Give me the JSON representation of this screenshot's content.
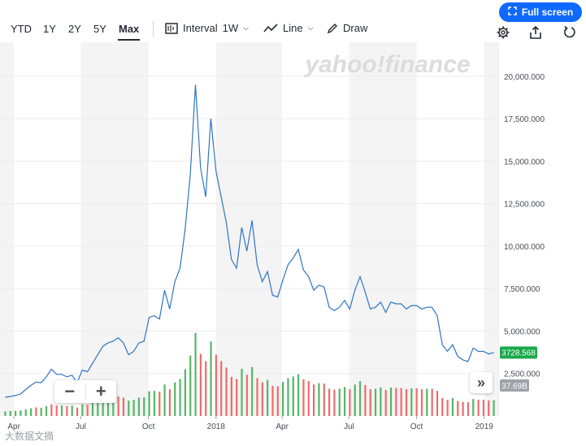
{
  "toolbar": {
    "ranges": [
      "YTD",
      "1Y",
      "2Y",
      "5Y",
      "Max"
    ],
    "active_range": "Max",
    "interval_label": "Interval",
    "interval_value": "1W",
    "line_label": "Line",
    "draw_label": "Draw",
    "fullscreen_label": "Full screen",
    "icons": [
      "candlestick-icon",
      "line-chart-icon",
      "pencil-icon",
      "fullscreen-icon",
      "settings-icon",
      "share-icon",
      "reset-icon"
    ]
  },
  "watermark": {
    "brand": "yahoo!finance",
    "bottom_text": "大数据文摘"
  },
  "colors": {
    "line": "#2e75c7",
    "volume_up": "#56b567",
    "volume_down": "#ee6b6b",
    "price_badge": "#1aa84b",
    "volume_badge": "#9da3a9",
    "accent": "#0f69ff"
  },
  "chart_data": {
    "type": "line",
    "x_ticks": [
      "Apr",
      "Jul",
      "Oct",
      "2018",
      "Apr",
      "Jul",
      "Oct",
      "2019"
    ],
    "x_tick_dates": [
      "2017-04-01",
      "2017-07-01",
      "2017-10-01",
      "2018-01-01",
      "2018-04-01",
      "2018-07-01",
      "2018-10-01",
      "2019-01-01"
    ],
    "y_ticks": [
      "2,500.000",
      "5,000.000",
      "7,500.000",
      "10,000.000",
      "12,500.000",
      "15,000.000",
      "17,500.000",
      "20,000.000"
    ],
    "y_tick_values": [
      2500,
      5000,
      7500,
      10000,
      12500,
      15000,
      17500,
      20000
    ],
    "ylim": [
      0,
      22000
    ],
    "last_price_label": "3728.568",
    "last_volume_label": "37.69B",
    "grid": true,
    "series": [
      {
        "x": [
          "2017-03-20",
          "2017-03-27",
          "2017-04-03",
          "2017-04-10",
          "2017-04-17",
          "2017-04-24",
          "2017-05-01",
          "2017-05-08",
          "2017-05-15",
          "2017-05-22",
          "2017-05-29",
          "2017-06-05",
          "2017-06-12",
          "2017-06-19",
          "2017-06-26",
          "2017-07-03",
          "2017-07-10",
          "2017-07-17",
          "2017-07-24",
          "2017-07-31",
          "2017-08-07",
          "2017-08-14",
          "2017-08-21",
          "2017-08-28",
          "2017-09-04",
          "2017-09-11",
          "2017-09-18",
          "2017-09-25",
          "2017-10-02",
          "2017-10-09",
          "2017-10-16",
          "2017-10-23",
          "2017-10-30",
          "2017-11-06",
          "2017-11-13",
          "2017-11-20",
          "2017-11-27",
          "2017-12-04",
          "2017-12-11",
          "2017-12-18",
          "2017-12-25",
          "2018-01-01",
          "2018-01-08",
          "2018-01-15",
          "2018-01-22",
          "2018-01-29",
          "2018-02-05",
          "2018-02-12",
          "2018-02-19",
          "2018-02-26",
          "2018-03-05",
          "2018-03-12",
          "2018-03-19",
          "2018-03-26",
          "2018-04-02",
          "2018-04-09",
          "2018-04-16",
          "2018-04-23",
          "2018-04-30",
          "2018-05-07",
          "2018-05-14",
          "2018-05-21",
          "2018-05-28",
          "2018-06-04",
          "2018-06-11",
          "2018-06-18",
          "2018-06-25",
          "2018-07-02",
          "2018-07-09",
          "2018-07-16",
          "2018-07-23",
          "2018-07-30",
          "2018-08-06",
          "2018-08-13",
          "2018-08-20",
          "2018-08-27",
          "2018-09-03",
          "2018-09-10",
          "2018-09-17",
          "2018-09-24",
          "2018-10-01",
          "2018-10-08",
          "2018-10-15",
          "2018-10-22",
          "2018-10-29",
          "2018-11-05",
          "2018-11-12",
          "2018-11-19",
          "2018-11-26",
          "2018-12-03",
          "2018-12-10",
          "2018-12-17",
          "2018-12-24",
          "2018-12-31",
          "2019-01-07",
          "2019-01-14"
        ],
        "y": [
          1100,
          1150,
          1200,
          1300,
          1550,
          1800,
          2000,
          1950,
          2300,
          2750,
          2450,
          2450,
          2300,
          2400,
          1950,
          2700,
          2600,
          3100,
          3600,
          4100,
          4300,
          4400,
          4600,
          4300,
          3600,
          3800,
          4300,
          4400,
          5800,
          5900,
          5700,
          7400,
          6300,
          7900,
          8700,
          11000,
          14200,
          19500,
          14600,
          12900,
          17500,
          14400,
          12900,
          11400,
          9200,
          8700,
          11100,
          9700,
          11500,
          8900,
          7900,
          8500,
          7100,
          7000,
          8000,
          8900,
          9300,
          9800,
          8600,
          8200,
          7400,
          7700,
          7600,
          6400,
          6200,
          6400,
          6800,
          6300,
          7400,
          8200,
          7300,
          6300,
          6400,
          6700,
          6100,
          6700,
          6600,
          6600,
          6300,
          6500,
          6500,
          6300,
          6400,
          6400,
          5900,
          4200,
          3800,
          4200,
          3500,
          3300,
          3200,
          4000,
          3800,
          3800,
          3650,
          3728.568
        ],
        "volume_up": [
          true,
          true,
          true,
          true,
          true,
          true,
          false,
          true,
          true,
          false,
          false,
          true,
          false,
          true,
          false,
          true,
          false,
          true,
          true,
          true,
          true,
          true,
          false,
          false,
          true,
          true,
          true,
          true,
          true,
          true,
          false,
          true,
          false,
          true,
          true,
          true,
          true,
          true,
          false,
          false,
          true,
          false,
          false,
          false,
          false,
          false,
          true,
          false,
          true,
          false,
          false,
          true,
          false,
          false,
          true,
          true,
          true,
          true,
          false,
          false,
          false,
          true,
          false,
          false,
          false,
          true,
          true,
          false,
          true,
          true,
          false,
          false,
          true,
          true,
          false,
          true,
          false,
          false,
          false,
          true,
          false,
          false,
          true,
          false,
          false,
          false,
          false,
          true,
          false,
          false,
          false,
          true,
          false,
          false,
          false,
          true
        ]
      }
    ]
  }
}
